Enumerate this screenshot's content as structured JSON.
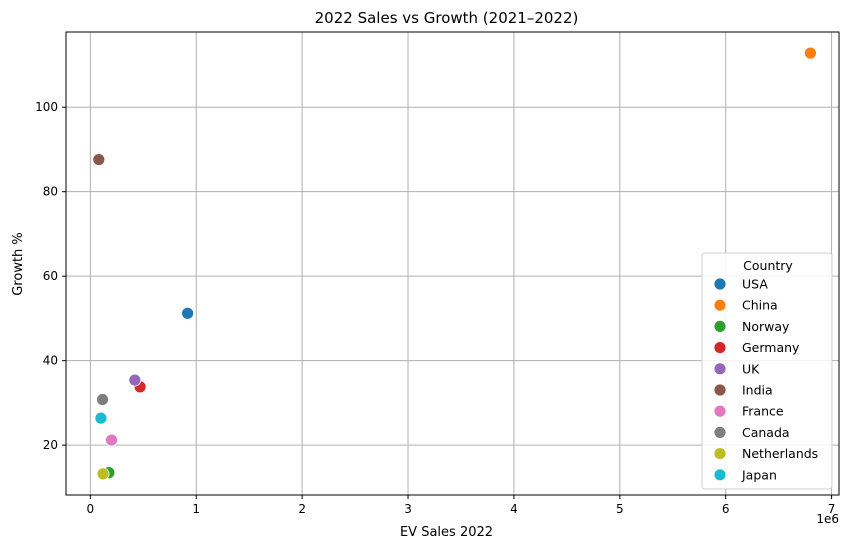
{
  "chart_data": {
    "type": "scatter",
    "title": "2022 Sales vs Growth (2021–2022)",
    "xlabel": "EV Sales 2022",
    "ylabel": "Growth %",
    "x_offset_label": "1e6",
    "xlim": [
      -230000,
      7070000
    ],
    "ylim": [
      8.2,
      117.8
    ],
    "x_ticks": [
      0,
      1000000,
      2000000,
      3000000,
      4000000,
      5000000,
      6000000,
      7000000
    ],
    "x_tick_labels": [
      "0",
      "1",
      "2",
      "3",
      "4",
      "5",
      "6",
      "7"
    ],
    "y_ticks": [
      20,
      40,
      60,
      80,
      100
    ],
    "y_tick_labels": [
      "20",
      "40",
      "60",
      "80",
      "100"
    ],
    "grid": true,
    "legend": {
      "title": "Country",
      "position": "lower-right"
    },
    "series": [
      {
        "name": "USA",
        "color": "#1f77b4",
        "x": 918500,
        "y": 51.2
      },
      {
        "name": "China",
        "color": "#ff7f0e",
        "x": 6800000,
        "y": 112.8
      },
      {
        "name": "Norway",
        "color": "#2ca02c",
        "x": 175000,
        "y": 13.5
      },
      {
        "name": "Germany",
        "color": "#d62728",
        "x": 470000,
        "y": 33.8
      },
      {
        "name": "UK",
        "color": "#9467bd",
        "x": 420000,
        "y": 35.4
      },
      {
        "name": "India",
        "color": "#8c564b",
        "x": 80000,
        "y": 87.6
      },
      {
        "name": "France",
        "color": "#e377c2",
        "x": 200000,
        "y": 21.2
      },
      {
        "name": "Canada",
        "color": "#7f7f7f",
        "x": 115000,
        "y": 30.8
      },
      {
        "name": "Netherlands",
        "color": "#bcbd22",
        "x": 120000,
        "y": 13.2
      },
      {
        "name": "Japan",
        "color": "#17becf",
        "x": 100000,
        "y": 26.4
      }
    ]
  }
}
